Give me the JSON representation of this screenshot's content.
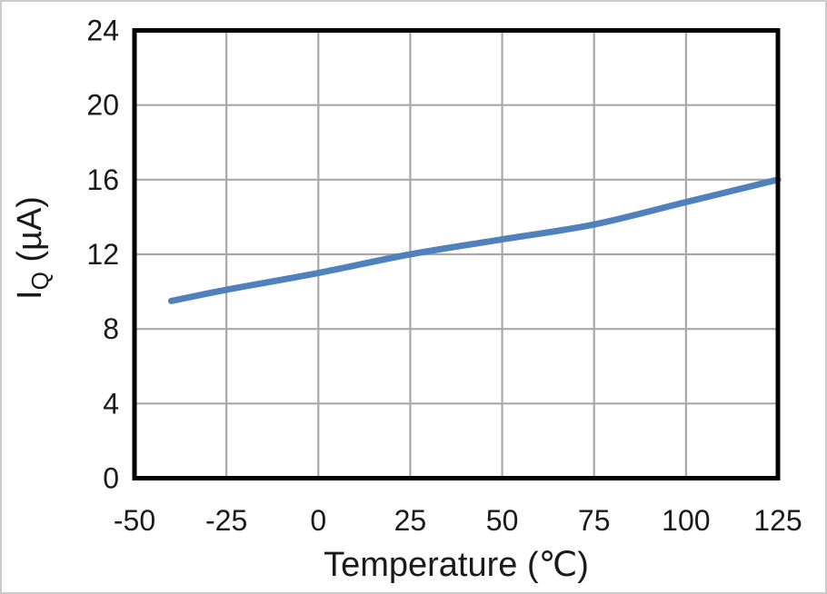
{
  "chart_data": {
    "type": "line",
    "title": "",
    "xlabel": "Temperature (℃)",
    "ylabel": "IQ (µA)",
    "ylabel_parts": {
      "pre": "I",
      "sub": "Q",
      "post": " (µA)"
    },
    "xlim": [
      -50,
      125
    ],
    "ylim": [
      0,
      24
    ],
    "xticks": [
      -50,
      -25,
      0,
      25,
      50,
      75,
      100,
      125
    ],
    "yticks": [
      0,
      4,
      8,
      12,
      16,
      20,
      24
    ],
    "grid": true,
    "legend": false,
    "series": [
      {
        "name": "IQ",
        "color": "#4f81bd",
        "x": [
          -40,
          -25,
          0,
          25,
          50,
          75,
          100,
          125
        ],
        "y": [
          9.5,
          10.1,
          11.0,
          12.0,
          12.8,
          13.6,
          14.8,
          16.0
        ]
      }
    ],
    "colors": {
      "gridline": "#a8a8a8",
      "frame": "#000000",
      "text": "#1a1a1a",
      "background": "#ffffff",
      "outer_border": "#cbcbcb",
      "line": "#4f81bd"
    }
  }
}
